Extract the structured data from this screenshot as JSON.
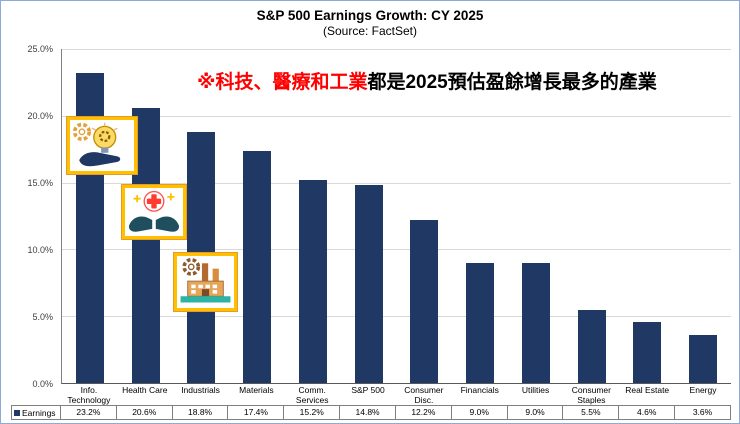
{
  "chart_data": {
    "type": "bar",
    "title": "S&P 500 Earnings Growth: CY 2025",
    "subtitle": "(Source: FactSet)",
    "categories": [
      "Info. Technology",
      "Health Care",
      "Industrials",
      "Materials",
      "Comm. Services",
      "S&P 500",
      "Consumer Disc.",
      "Financials",
      "Utilities",
      "Consumer Staples",
      "Real Estate",
      "Energy"
    ],
    "values": [
      23.2,
      20.6,
      18.8,
      17.4,
      15.2,
      14.8,
      12.2,
      9.0,
      9.0,
      5.5,
      4.6,
      3.6
    ],
    "value_labels": [
      "23.2%",
      "20.6%",
      "18.8%",
      "17.4%",
      "15.2%",
      "14.8%",
      "12.2%",
      "9.0%",
      "9.0%",
      "5.5%",
      "4.6%",
      "3.6%"
    ],
    "ylim": [
      0,
      25
    ],
    "ytick_labels": [
      "25.0%",
      "20.0%",
      "15.0%",
      "10.0%",
      "5.0%",
      "0.0%"
    ],
    "legend_label": "Earnings",
    "legend_position": "bottom-left",
    "grid": true,
    "bar_color": "#1f3864",
    "gridline_color": "#d9d9d9"
  },
  "annotation": {
    "red_part": "※科技、醫療和工業",
    "black_part": "都是2025預估盈餘增長最多的產業",
    "red_color": "#ff0000"
  },
  "icons": [
    {
      "name": "lightbulb-gear-hand-icon",
      "meaning": "technology idea"
    },
    {
      "name": "medical-cross-hands-icon",
      "meaning": "health care"
    },
    {
      "name": "factory-icon",
      "meaning": "industrials"
    }
  ],
  "frame": {
    "border_color": "#8eaadb",
    "callout_border_color": "#ffc000"
  }
}
